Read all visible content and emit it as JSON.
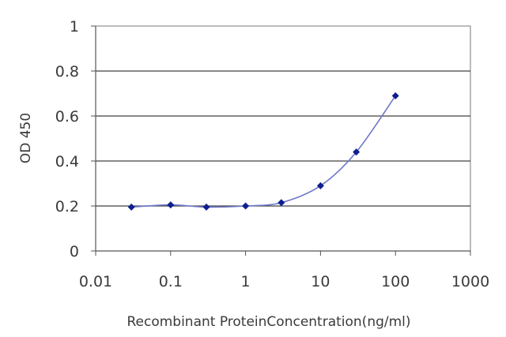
{
  "chart_data": {
    "type": "line",
    "title": "",
    "xlabel": "Recombinant ProteinConcentration(ng/ml)",
    "ylabel": "OD 450",
    "x_scale": "log",
    "xlim": [
      0.01,
      1000
    ],
    "ylim": [
      0,
      1
    ],
    "x_ticks": [
      "0.01",
      "0.1",
      "1",
      "10",
      "100",
      "1000"
    ],
    "y_ticks": [
      "0",
      "0.2",
      "0.4",
      "0.6",
      "0.8",
      "1"
    ],
    "grid": "horizontal",
    "legend": "none",
    "series": [
      {
        "x": [
          0.03,
          0.1,
          0.3,
          1,
          3,
          10,
          30,
          100
        ],
        "y": [
          0.195,
          0.205,
          0.195,
          0.2,
          0.215,
          0.29,
          0.44,
          0.69
        ]
      }
    ],
    "colors": {
      "line": "#6d78c9",
      "marker": "#0f1f8f",
      "grid": "#404040"
    }
  }
}
